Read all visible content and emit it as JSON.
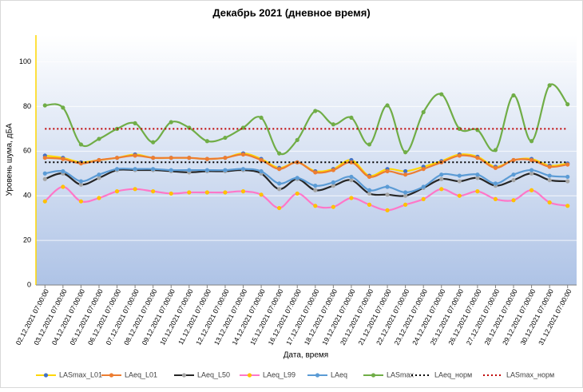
{
  "chart_data": {
    "type": "line",
    "title": "Декабрь 2021 (дневное время)",
    "x_label": "Дата, время",
    "y_label": "Уровень шума, дБА",
    "categories": [
      "02.12.2021 07:00:00",
      "03.12.2021 07:00:00",
      "04.12.2021 07:00:00",
      "05.12.2021 07:00:00",
      "06.12.2021 07:00:00",
      "07.12.2021 07:00:00",
      "08.12.2021 07:00:00",
      "09.12.2021 07:00:00",
      "10.12.2021 07:00:00",
      "11.12.2021 07:00:00",
      "12.12.2021 07:00:00",
      "13.12.2021 07:00:00",
      "14.12.2021 07:00:00",
      "15.12.2021 07:00:00",
      "16.12.2021 07:00:00",
      "17.12.2021 07:00:00",
      "18.12.2021 07:00:00",
      "19.12.2021 07:00:00",
      "20.12.2021 07:00:00",
      "21.12.2021 07:00:00",
      "22.12.2021 07:00:00",
      "23.12.2021 07:00:00",
      "24.12.2021 07:00:00",
      "25.12.2021 07:00:00",
      "26.12.2021 07:00:00",
      "27.12.2021 07:00:00",
      "28.12.2021 07:00:00",
      "29.12.2021 07:00:00",
      "30.12.2021 07:00:00",
      "31.12.2021 07:00:00"
    ],
    "ylim": [
      0,
      112
    ],
    "yticks": [
      0,
      20,
      40,
      60,
      80,
      100
    ],
    "grid": true,
    "legend": "bottom",
    "series": [
      {
        "name": "LASmax_L01",
        "color": "#ffd700",
        "marker_color": "#4472c4",
        "values": [
          58,
          57,
          55,
          56,
          57,
          58.5,
          57,
          57,
          57,
          56.5,
          57,
          59,
          56.5,
          52.5,
          55,
          51,
          52,
          56,
          49,
          52,
          51,
          53,
          55.5,
          58.5,
          57.5,
          53,
          56,
          56.5,
          53.5,
          54.5
        ]
      },
      {
        "name": "LAeq_L01",
        "color": "#ed7d31",
        "values": [
          57,
          56.5,
          54.5,
          56,
          57,
          58,
          57,
          57,
          57,
          56.5,
          57,
          58.5,
          56,
          52,
          55,
          50.5,
          51.5,
          55,
          48.5,
          51,
          49.5,
          52,
          55,
          58,
          57,
          52.5,
          56,
          56,
          53,
          54
        ]
      },
      {
        "name": "LAeq_L50",
        "color": "#262626",
        "marker_color": "#a5a5a5",
        "values": [
          47.5,
          50,
          45,
          48,
          51.5,
          51.5,
          51.5,
          51,
          50.5,
          51,
          51,
          51.5,
          50,
          43,
          47.5,
          42.5,
          44.5,
          47,
          41,
          40.5,
          40,
          43.5,
          47.5,
          46.5,
          48,
          44.5,
          47,
          50,
          47,
          46.5
        ]
      },
      {
        "name": "LAeq_L99",
        "color": "#ff77c8",
        "marker_color": "#ffc000",
        "values": [
          37.5,
          44,
          37.5,
          39,
          42,
          43,
          42,
          41,
          41.5,
          41.5,
          41.5,
          42,
          40.5,
          34.5,
          41,
          35.5,
          35,
          39,
          36,
          33.5,
          36,
          38.5,
          43,
          40,
          42,
          38.5,
          38,
          42.5,
          37,
          35.5
        ]
      },
      {
        "name": "LAeq",
        "color": "#5b9bd5",
        "values": [
          50,
          51,
          46.5,
          49.5,
          52,
          52,
          52,
          51.5,
          51.5,
          51.5,
          51.5,
          52,
          51,
          45.5,
          48,
          44.5,
          46,
          48.5,
          42.5,
          44,
          41.5,
          44,
          49.5,
          49,
          49.5,
          45.5,
          49.5,
          51.5,
          49,
          48.5
        ]
      },
      {
        "name": "LASmax",
        "color": "#70ad47",
        "values": [
          80.5,
          79.5,
          63,
          65.5,
          70,
          72.5,
          64,
          73,
          70.5,
          64.5,
          66,
          70.5,
          75,
          59,
          65,
          78,
          72,
          75,
          63,
          80.5,
          59.5,
          77.5,
          85.5,
          70,
          69.5,
          60.5,
          85,
          64.5,
          89.5,
          81
        ]
      },
      {
        "name": "LAeq_норм",
        "color": "#000000",
        "dashed": true,
        "values": [
          55,
          55,
          55,
          55,
          55,
          55,
          55,
          55,
          55,
          55,
          55,
          55,
          55,
          55,
          55,
          55,
          55,
          55,
          55,
          55,
          55,
          55,
          55,
          55,
          55,
          55,
          55,
          55,
          55,
          55
        ]
      },
      {
        "name": "LASmax_норм",
        "color": "#c00000",
        "dashed": true,
        "values": [
          70,
          70,
          70,
          70,
          70,
          70,
          70,
          70,
          70,
          70,
          70,
          70,
          70,
          70,
          70,
          70,
          70,
          70,
          70,
          70,
          70,
          70,
          70,
          70,
          70,
          70,
          70,
          70,
          70,
          70
        ]
      }
    ]
  }
}
